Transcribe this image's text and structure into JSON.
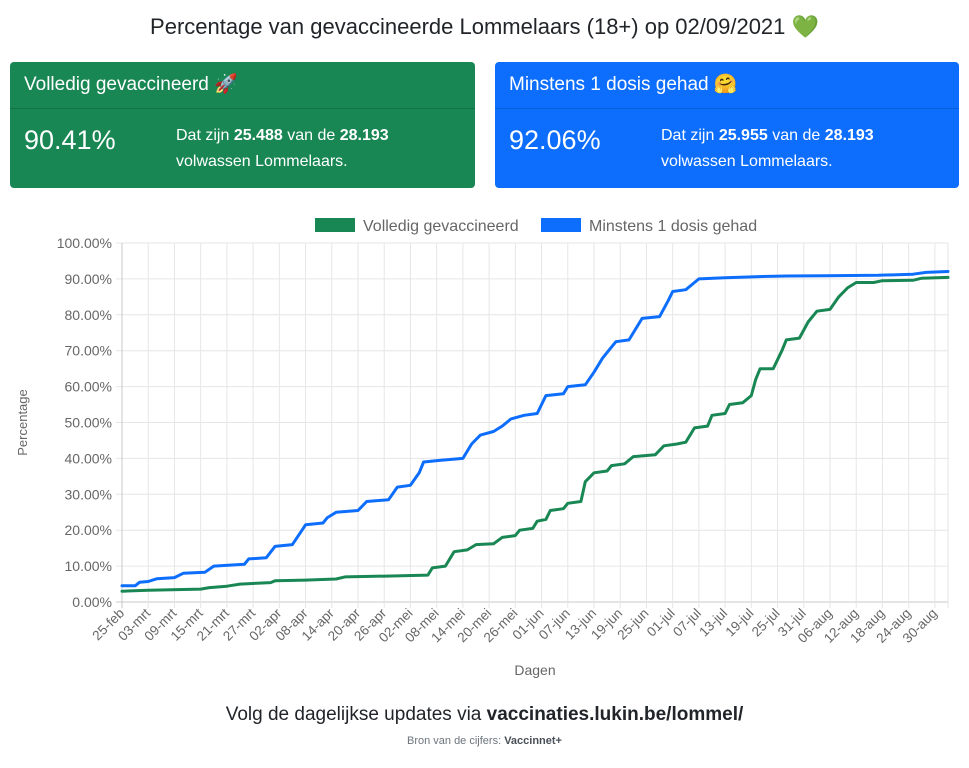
{
  "header": {
    "title": "Percentage van gevaccineerde Lommelaars (18+) op 02/09/2021",
    "title_emoji": "💚"
  },
  "cards": {
    "full": {
      "title": "Volledig gevaccineerd",
      "emoji": "🚀",
      "percentage": "90.41%",
      "desc_pre": "Dat zijn",
      "count": "25.488",
      "desc_mid": "van de",
      "total": "28.193",
      "desc_post": "volwassen Lommelaars.",
      "color": "#198754"
    },
    "partial": {
      "title": "Minstens 1 dosis gehad",
      "emoji": "🤗",
      "percentage": "92.06%",
      "desc_pre": "Dat zijn",
      "count": "25.955",
      "desc_mid": "van de",
      "total": "28.193",
      "desc_post": "volwassen Lommelaars.",
      "color": "#0d6efd"
    }
  },
  "chart_data": {
    "type": "line",
    "xlabel": "Dagen",
    "ylabel": "Percentage",
    "ylim": [
      0,
      100
    ],
    "yticks": [
      "0.00%",
      "10.00%",
      "20.00%",
      "30.00%",
      "40.00%",
      "50.00%",
      "60.00%",
      "70.00%",
      "80.00%",
      "90.00%",
      "100.00%"
    ],
    "x_start": "2021-02-25",
    "x_end": "2021-09-02",
    "xticks": [
      "25-feb",
      "03-mrt",
      "09-mrt",
      "15-mrt",
      "21-mrt",
      "27-mrt",
      "02-apr",
      "08-apr",
      "14-apr",
      "20-apr",
      "26-apr",
      "02-mei",
      "08-mei",
      "14-mei",
      "20-mei",
      "26-mei",
      "01-jun",
      "07-jun",
      "13-jun",
      "19-jun",
      "25-jun",
      "01-jul",
      "07-jul",
      "13-jul",
      "19-jul",
      "25-jul",
      "31-jul",
      "06-aug",
      "12-aug",
      "18-aug",
      "24-aug",
      "30-aug"
    ],
    "grid": true,
    "legend_position": "top",
    "series": [
      {
        "name": "Volledig gevaccineerd",
        "color": "#198754",
        "points": [
          [
            "2021-02-25",
            3.0
          ],
          [
            "2021-03-03",
            3.3
          ],
          [
            "2021-03-15",
            3.6
          ],
          [
            "2021-03-17",
            4.0
          ],
          [
            "2021-03-21",
            4.4
          ],
          [
            "2021-03-24",
            5.0
          ],
          [
            "2021-03-31",
            5.4
          ],
          [
            "2021-04-01",
            5.9
          ],
          [
            "2021-04-08",
            6.1
          ],
          [
            "2021-04-15",
            6.4
          ],
          [
            "2021-04-17",
            7.0
          ],
          [
            "2021-04-30",
            7.3
          ],
          [
            "2021-05-06",
            7.5
          ],
          [
            "2021-05-07",
            9.5
          ],
          [
            "2021-05-10",
            10.0
          ],
          [
            "2021-05-12",
            14.0
          ],
          [
            "2021-05-15",
            14.5
          ],
          [
            "2021-05-17",
            16.0
          ],
          [
            "2021-05-21",
            16.2
          ],
          [
            "2021-05-23",
            18.0
          ],
          [
            "2021-05-26",
            18.5
          ],
          [
            "2021-05-27",
            20.0
          ],
          [
            "2021-05-30",
            20.5
          ],
          [
            "2021-05-31",
            22.5
          ],
          [
            "2021-06-02",
            23.0
          ],
          [
            "2021-06-03",
            25.5
          ],
          [
            "2021-06-06",
            26.0
          ],
          [
            "2021-06-07",
            27.5
          ],
          [
            "2021-06-10",
            28.0
          ],
          [
            "2021-06-11",
            33.5
          ],
          [
            "2021-06-13",
            36.0
          ],
          [
            "2021-06-16",
            36.5
          ],
          [
            "2021-06-17",
            38.0
          ],
          [
            "2021-06-20",
            38.5
          ],
          [
            "2021-06-22",
            40.5
          ],
          [
            "2021-06-27",
            41.0
          ],
          [
            "2021-06-29",
            43.5
          ],
          [
            "2021-07-02",
            44.0
          ],
          [
            "2021-07-04",
            44.5
          ],
          [
            "2021-07-06",
            48.5
          ],
          [
            "2021-07-09",
            49.0
          ],
          [
            "2021-07-10",
            52.0
          ],
          [
            "2021-07-13",
            52.5
          ],
          [
            "2021-07-14",
            55.0
          ],
          [
            "2021-07-17",
            55.5
          ],
          [
            "2021-07-19",
            57.5
          ],
          [
            "2021-07-20",
            62.0
          ],
          [
            "2021-07-21",
            65.0
          ],
          [
            "2021-07-24",
            65.0
          ],
          [
            "2021-07-26",
            70.0
          ],
          [
            "2021-07-27",
            73.0
          ],
          [
            "2021-07-30",
            73.5
          ],
          [
            "2021-08-01",
            78.0
          ],
          [
            "2021-08-03",
            81.0
          ],
          [
            "2021-08-06",
            81.5
          ],
          [
            "2021-08-08",
            85.0
          ],
          [
            "2021-08-10",
            87.5
          ],
          [
            "2021-08-12",
            89.0
          ],
          [
            "2021-08-16",
            89.0
          ],
          [
            "2021-08-18",
            89.5
          ],
          [
            "2021-08-25",
            89.6
          ],
          [
            "2021-08-27",
            90.2
          ],
          [
            "2021-09-02",
            90.41
          ]
        ]
      },
      {
        "name": "Minstens 1 dosis gehad",
        "color": "#0d6efd",
        "points": [
          [
            "2021-02-25",
            4.5
          ],
          [
            "2021-02-28",
            4.5
          ],
          [
            "2021-03-01",
            5.5
          ],
          [
            "2021-03-03",
            5.7
          ],
          [
            "2021-03-05",
            6.5
          ],
          [
            "2021-03-09",
            6.8
          ],
          [
            "2021-03-11",
            8.0
          ],
          [
            "2021-03-16",
            8.3
          ],
          [
            "2021-03-18",
            10.0
          ],
          [
            "2021-03-25",
            10.5
          ],
          [
            "2021-03-26",
            12.0
          ],
          [
            "2021-03-30",
            12.3
          ],
          [
            "2021-04-01",
            15.5
          ],
          [
            "2021-04-05",
            16.0
          ],
          [
            "2021-04-08",
            21.5
          ],
          [
            "2021-04-12",
            22.0
          ],
          [
            "2021-04-13",
            23.5
          ],
          [
            "2021-04-15",
            25.0
          ],
          [
            "2021-04-20",
            25.5
          ],
          [
            "2021-04-22",
            28.0
          ],
          [
            "2021-04-27",
            28.5
          ],
          [
            "2021-04-29",
            32.0
          ],
          [
            "2021-05-02",
            32.5
          ],
          [
            "2021-05-04",
            36.0
          ],
          [
            "2021-05-05",
            39.0
          ],
          [
            "2021-05-09",
            39.5
          ],
          [
            "2021-05-14",
            40.0
          ],
          [
            "2021-05-16",
            44.0
          ],
          [
            "2021-05-18",
            46.5
          ],
          [
            "2021-05-21",
            47.5
          ],
          [
            "2021-05-23",
            49.0
          ],
          [
            "2021-05-25",
            51.0
          ],
          [
            "2021-05-28",
            52.0
          ],
          [
            "2021-05-31",
            52.5
          ],
          [
            "2021-06-02",
            57.5
          ],
          [
            "2021-06-06",
            58.0
          ],
          [
            "2021-06-07",
            60.0
          ],
          [
            "2021-06-11",
            60.5
          ],
          [
            "2021-06-13",
            64.0
          ],
          [
            "2021-06-15",
            68.0
          ],
          [
            "2021-06-17",
            71.0
          ],
          [
            "2021-06-18",
            72.5
          ],
          [
            "2021-06-21",
            73.0
          ],
          [
            "2021-06-24",
            79.0
          ],
          [
            "2021-06-28",
            79.5
          ],
          [
            "2021-06-30",
            84.0
          ],
          [
            "2021-07-01",
            86.5
          ],
          [
            "2021-07-04",
            87.0
          ],
          [
            "2021-07-06",
            89.0
          ],
          [
            "2021-07-07",
            90.0
          ],
          [
            "2021-07-13",
            90.3
          ],
          [
            "2021-07-20",
            90.6
          ],
          [
            "2021-07-27",
            90.8
          ],
          [
            "2021-08-05",
            90.9
          ],
          [
            "2021-08-17",
            91.0
          ],
          [
            "2021-08-25",
            91.3
          ],
          [
            "2021-08-28",
            91.8
          ],
          [
            "2021-09-02",
            92.06
          ]
        ]
      }
    ]
  },
  "footer": {
    "updates_text": "Volg de dagelijkse updates via",
    "updates_link": "vaccinaties.lukin.be/lommel/",
    "source_text": "Bron van de cijfers:",
    "source_name": "Vaccinnet+"
  }
}
